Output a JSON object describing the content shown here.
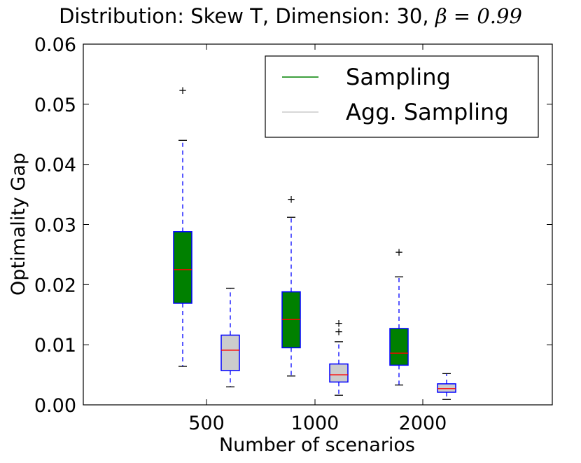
{
  "chart_data": {
    "type": "boxplot",
    "title": {
      "text": "Distribution: Skew T, Dimension: 30, ",
      "math": "β = 0.99"
    },
    "xlabel": "Number of scenarios",
    "ylabel": "Optimality Gap",
    "ylim": [
      0.0,
      0.06
    ],
    "yticks": [
      "0.00",
      "0.01",
      "0.02",
      "0.03",
      "0.04",
      "0.05",
      "0.06"
    ],
    "categories": [
      "500",
      "1000",
      "2000"
    ],
    "legend": {
      "placement": "top-right",
      "entries": [
        "Sampling",
        "Agg. Sampling"
      ]
    },
    "colors": {
      "sampling_fill": "#008000",
      "agg_fill": "#cccccc",
      "box_edge": "#0000ff",
      "median": "#ff0000",
      "whisker": "#0000ff",
      "sampling_legend_line": "#008000",
      "agg_legend_line": "#cccccc"
    },
    "series": [
      {
        "name": "Sampling",
        "boxes": [
          {
            "category": "500",
            "whisker_low": 0.0064,
            "q1": 0.0169,
            "median": 0.0225,
            "q3": 0.0288,
            "whisker_high": 0.044,
            "fliers": [
              0.0523
            ]
          },
          {
            "category": "1000",
            "whisker_low": 0.0048,
            "q1": 0.0095,
            "median": 0.0142,
            "q3": 0.0188,
            "whisker_high": 0.0312,
            "fliers": [
              0.0342
            ]
          },
          {
            "category": "2000",
            "whisker_low": 0.0033,
            "q1": 0.0066,
            "median": 0.0086,
            "q3": 0.0127,
            "whisker_high": 0.0213,
            "fliers": [
              0.0254
            ]
          }
        ]
      },
      {
        "name": "Agg. Sampling",
        "boxes": [
          {
            "category": "500",
            "whisker_low": 0.003,
            "q1": 0.0057,
            "median": 0.0091,
            "q3": 0.0116,
            "whisker_high": 0.0194,
            "fliers": []
          },
          {
            "category": "1000",
            "whisker_low": 0.0016,
            "q1": 0.0038,
            "median": 0.005,
            "q3": 0.0068,
            "whisker_high": 0.0105,
            "fliers": [
              0.0122,
              0.0136
            ]
          },
          {
            "category": "2000",
            "whisker_low": 0.0009,
            "q1": 0.0021,
            "median": 0.0027,
            "q3": 0.0035,
            "whisker_high": 0.0052,
            "fliers": []
          }
        ]
      }
    ]
  }
}
